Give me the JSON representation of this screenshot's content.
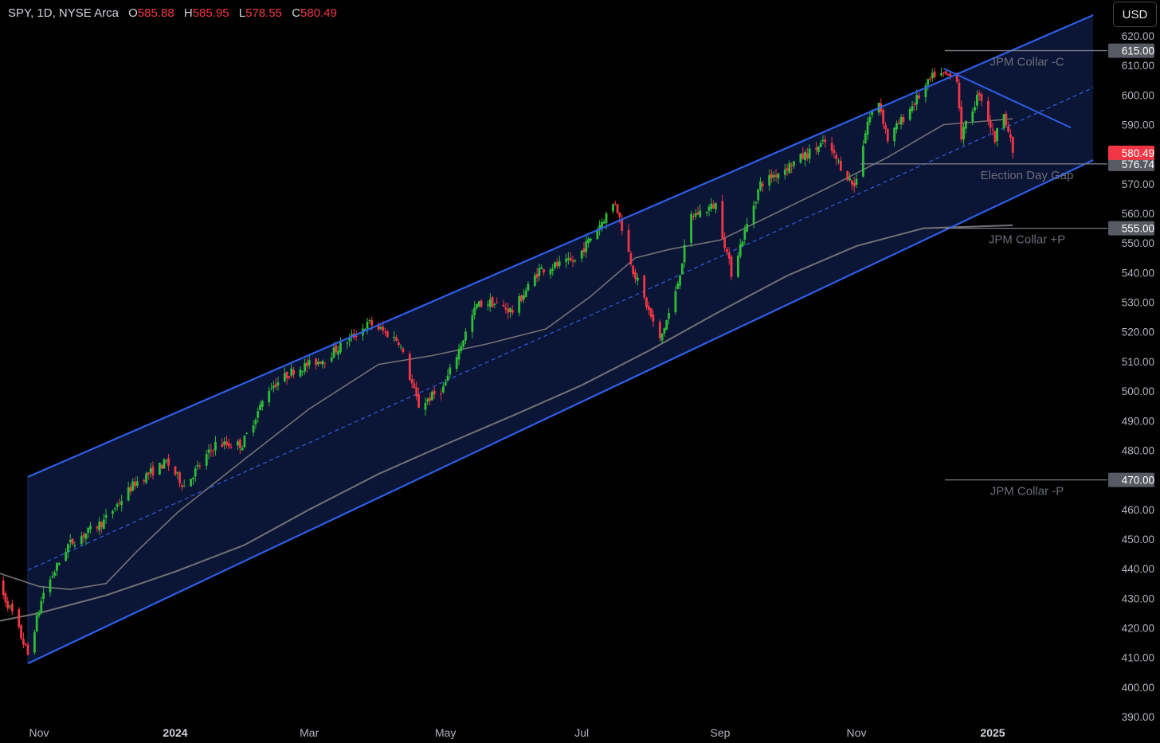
{
  "header": {
    "symbol": "SPY, 1D, NYSE Arca",
    "open_label": "O",
    "open": "585.88",
    "high_label": "H",
    "high": "585.95",
    "low_label": "L",
    "low": "578.55",
    "close_label": "C",
    "close": "580.49"
  },
  "currency_button": "USD",
  "colors": {
    "background": "#000000",
    "up": "#2ebd37",
    "down": "#f23645",
    "channel_line": "#2f5fe8",
    "channel_fill": "#0b1535",
    "ma_line": "#737375",
    "annotation_line": "#787b86",
    "tag_gray": "#575a63",
    "tag_red": "#f23645"
  },
  "chart_data": {
    "type": "candlestick",
    "symbol": "SPY",
    "interval": "1D",
    "exchange": "NYSE Arca",
    "ylim": [
      388,
      624
    ],
    "y_ticks": [
      "620.00",
      "610.00",
      "600.00",
      "590.00",
      "580.00",
      "570.00",
      "560.00",
      "550.00",
      "540.00",
      "530.00",
      "520.00",
      "510.00",
      "500.00",
      "490.00",
      "480.00",
      "470.00",
      "460.00",
      "450.00",
      "440.00",
      "430.00",
      "420.00",
      "410.00",
      "400.00",
      "390.00"
    ],
    "x_ticks": [
      {
        "label": "Nov",
        "date": "2023-11-01"
      },
      {
        "label": "2024",
        "date": "2024-01-01",
        "bold": true
      },
      {
        "label": "Mar",
        "date": "2024-03-01"
      },
      {
        "label": "May",
        "date": "2024-05-01"
      },
      {
        "label": "Jul",
        "date": "2024-07-01"
      },
      {
        "label": "Sep",
        "date": "2024-09-01"
      },
      {
        "label": "Nov",
        "date": "2024-11-01"
      },
      {
        "label": "2025",
        "date": "2025-01-01",
        "bold": true
      }
    ],
    "price_path": [
      [
        "2023-10-12",
        437
      ],
      [
        "2023-10-20",
        425
      ],
      [
        "2023-10-27",
        411
      ],
      [
        "2023-11-03",
        432
      ],
      [
        "2023-11-14",
        448
      ],
      [
        "2023-11-30",
        456
      ],
      [
        "2023-12-14",
        469
      ],
      [
        "2023-12-28",
        476
      ],
      [
        "2024-01-05",
        468
      ],
      [
        "2024-01-19",
        482
      ],
      [
        "2024-01-31",
        482
      ],
      [
        "2024-02-12",
        501
      ],
      [
        "2024-02-23",
        507
      ],
      [
        "2024-03-08",
        511
      ],
      [
        "2024-03-28",
        523
      ],
      [
        "2024-04-10",
        517
      ],
      [
        "2024-04-19",
        495
      ],
      [
        "2024-04-30",
        501
      ],
      [
        "2024-05-15",
        529
      ],
      [
        "2024-05-21",
        530
      ],
      [
        "2024-05-31",
        527
      ],
      [
        "2024-06-12",
        541
      ],
      [
        "2024-06-28",
        544
      ],
      [
        "2024-07-16",
        564
      ],
      [
        "2024-07-24",
        541
      ],
      [
        "2024-08-05",
        517
      ],
      [
        "2024-08-12",
        533
      ],
      [
        "2024-08-19",
        559
      ],
      [
        "2024-08-30",
        563
      ],
      [
        "2024-09-06",
        540
      ],
      [
        "2024-09-19",
        570
      ],
      [
        "2024-10-18",
        584
      ],
      [
        "2024-10-31",
        569
      ],
      [
        "2024-11-06",
        591
      ],
      [
        "2024-11-11",
        598
      ],
      [
        "2024-11-15",
        585
      ],
      [
        "2024-12-06",
        607
      ],
      [
        "2024-12-16",
        606
      ],
      [
        "2024-12-18",
        586
      ],
      [
        "2024-12-26",
        601
      ],
      [
        "2025-01-02",
        585
      ],
      [
        "2025-01-06",
        595
      ],
      [
        "2025-01-10",
        580.49
      ]
    ],
    "ma_50": [
      [
        "2023-10-12",
        439
      ],
      [
        "2023-11-01",
        434
      ],
      [
        "2023-11-15",
        433
      ],
      [
        "2023-12-01",
        435
      ],
      [
        "2023-12-15",
        446
      ],
      [
        "2024-01-02",
        459
      ],
      [
        "2024-02-01",
        477
      ],
      [
        "2024-03-01",
        494
      ],
      [
        "2024-04-01",
        509
      ],
      [
        "2024-04-25",
        512
      ],
      [
        "2024-05-20",
        516
      ],
      [
        "2024-06-15",
        521
      ],
      [
        "2024-07-05",
        532
      ],
      [
        "2024-07-25",
        545
      ],
      [
        "2024-08-10",
        548
      ],
      [
        "2024-09-01",
        551
      ],
      [
        "2024-10-01",
        562
      ],
      [
        "2024-10-20",
        569
      ],
      [
        "2024-11-15",
        579
      ],
      [
        "2024-12-10",
        590
      ],
      [
        "2025-01-10",
        592
      ]
    ],
    "ma_200": [
      [
        "2023-10-12",
        422
      ],
      [
        "2023-11-01",
        425
      ],
      [
        "2023-12-01",
        431
      ],
      [
        "2024-01-01",
        439
      ],
      [
        "2024-02-01",
        448
      ],
      [
        "2024-03-01",
        460
      ],
      [
        "2024-04-01",
        472
      ],
      [
        "2024-05-01",
        482
      ],
      [
        "2024-06-01",
        492
      ],
      [
        "2024-07-01",
        502
      ],
      [
        "2024-08-01",
        514
      ],
      [
        "2024-09-01",
        527
      ],
      [
        "2024-10-01",
        539
      ],
      [
        "2024-11-01",
        549
      ],
      [
        "2024-12-01",
        555
      ],
      [
        "2025-01-10",
        556
      ]
    ],
    "channel": {
      "start": "2023-10-27",
      "end": "2025-02-15",
      "upper": [
        471,
        627
      ],
      "lower": [
        408,
        578
      ],
      "middle": [
        439.5,
        602.5
      ]
    },
    "resistance_line": {
      "start": [
        "2024-12-10",
        609
      ],
      "end": [
        "2025-02-05",
        589
      ]
    },
    "annotations": [
      {
        "label": "JPM Collar -C",
        "price": 615.0,
        "tag": "615.00",
        "color": "gray"
      },
      {
        "label": "Election Day Gap",
        "price": 576.74,
        "tag": "576.74",
        "color": "gray"
      },
      {
        "label": "JPM Collar +P",
        "price": 555.0,
        "tag": "555.00",
        "color": "gray"
      },
      {
        "label": "JPM Collar -P",
        "price": 470.0,
        "tag": "470.00",
        "color": "gray"
      }
    ],
    "last_price": {
      "value": 580.49,
      "tag": "580.49"
    }
  }
}
